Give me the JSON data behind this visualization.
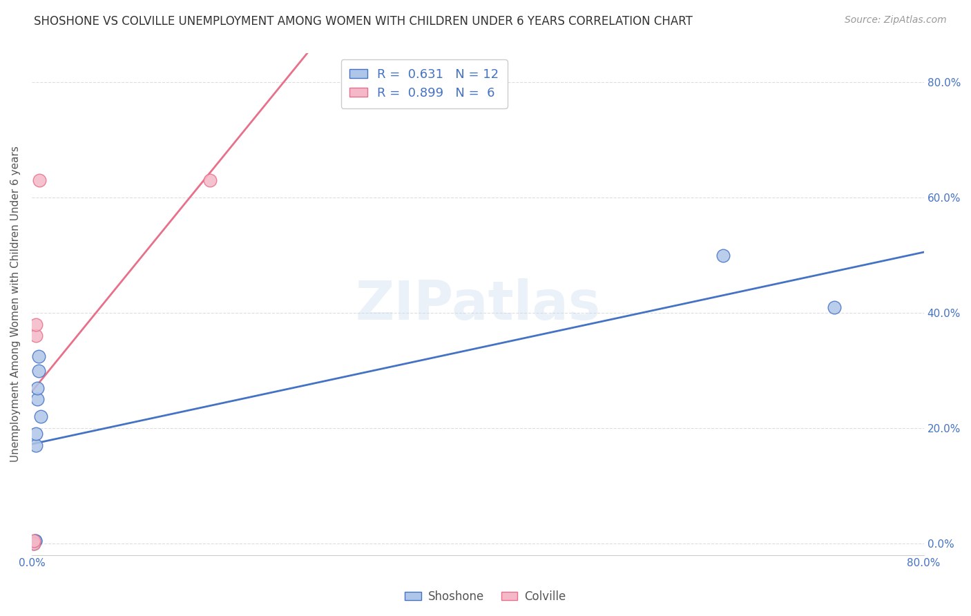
{
  "title": "SHOSHONE VS COLVILLE UNEMPLOYMENT AMONG WOMEN WITH CHILDREN UNDER 6 YEARS CORRELATION CHART",
  "source": "Source: ZipAtlas.com",
  "ylabel": "Unemployment Among Women with Children Under 6 years",
  "background_color": "#ffffff",
  "shoshone_points": [
    [
      0.002,
      0.0
    ],
    [
      0.003,
      0.005
    ],
    [
      0.003,
      0.005
    ],
    [
      0.004,
      0.17
    ],
    [
      0.004,
      0.19
    ],
    [
      0.005,
      0.25
    ],
    [
      0.005,
      0.27
    ],
    [
      0.006,
      0.3
    ],
    [
      0.006,
      0.325
    ],
    [
      0.008,
      0.22
    ],
    [
      0.62,
      0.5
    ],
    [
      0.72,
      0.41
    ]
  ],
  "colville_points": [
    [
      0.002,
      0.0
    ],
    [
      0.002,
      0.005
    ],
    [
      0.004,
      0.36
    ],
    [
      0.004,
      0.38
    ],
    [
      0.007,
      0.63
    ],
    [
      0.16,
      0.63
    ]
  ],
  "shoshone_R": 0.631,
  "shoshone_N": 12,
  "colville_R": 0.899,
  "colville_N": 6,
  "shoshone_fill": "#aec6e8",
  "colville_fill": "#f4b8c8",
  "shoshone_edge": "#4472c4",
  "colville_edge": "#e8708a",
  "shoshone_line": "#4472c4",
  "colville_line": "#e8708a",
  "legend_color": "#4472c4",
  "title_color": "#333333",
  "ylabel_color": "#555555",
  "tick_color": "#4472c4",
  "grid_color": "#dddddd",
  "watermark": "ZIPatlas",
  "xlim": [
    0.0,
    0.8
  ],
  "ylim": [
    -0.02,
    0.85
  ],
  "xticks": [
    0.0,
    0.1,
    0.2,
    0.3,
    0.4,
    0.5,
    0.6,
    0.7,
    0.8
  ],
  "yticks": [
    0.0,
    0.2,
    0.4,
    0.6,
    0.8
  ],
  "marker_size": 180,
  "line_width": 2.0
}
